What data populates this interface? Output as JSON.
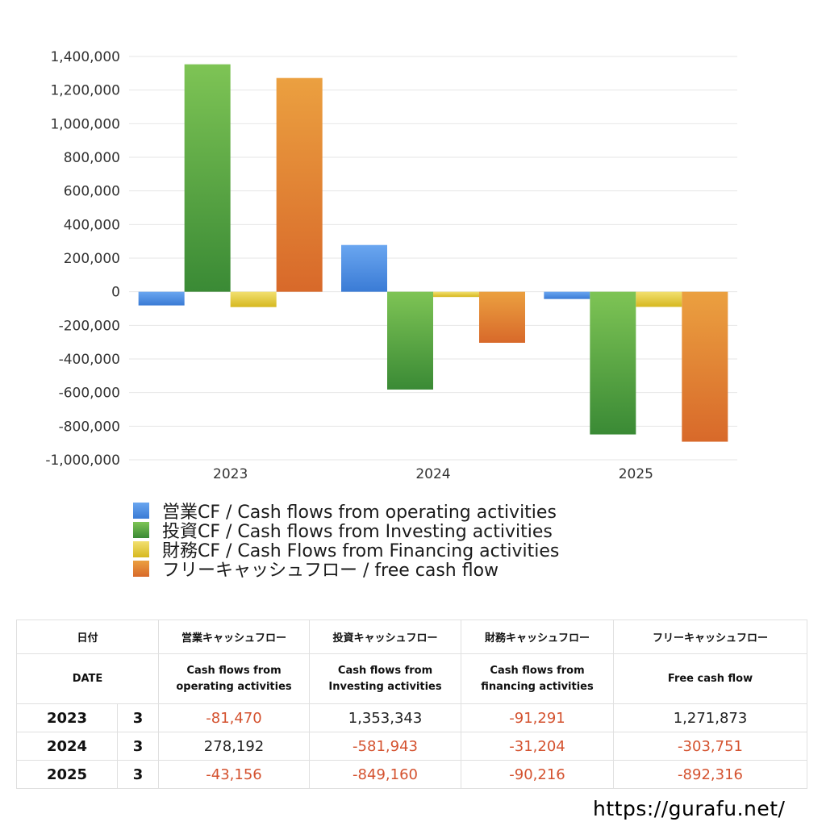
{
  "chart_data": {
    "type": "bar",
    "categories": [
      "2023",
      "2024",
      "2025"
    ],
    "series": [
      {
        "name": "営業CF / Cash flows from operating activities",
        "values": [
          -81470,
          278192,
          -43156
        ],
        "color": "#3a7bd5",
        "color_top": "#6aa6f0"
      },
      {
        "name": "投資CF / Cash flows from Investing activities",
        "values": [
          1353343,
          -581943,
          -849160
        ],
        "color": "#3a8a35",
        "color_top": "#7ec455"
      },
      {
        "name": "財務CF / Cash Flows from Financing activities",
        "values": [
          -91291,
          -31204,
          -90216
        ],
        "color": "#d6b820",
        "color_top": "#f2e070"
      },
      {
        "name": "フリーキャッシュフロー / free cash flow",
        "values": [
          1271873,
          -303751,
          -892316
        ],
        "color": "#d8692a",
        "color_top": "#eba040"
      }
    ],
    "ylim": [
      -1000000,
      1400000
    ],
    "yticks": [
      1400000,
      1200000,
      1000000,
      800000,
      600000,
      400000,
      200000,
      0,
      -200000,
      -400000,
      -600000,
      -800000,
      -1000000
    ],
    "ytick_labels": [
      "1,400,000",
      "1,200,000",
      "1,000,000",
      "800,000",
      "600,000",
      "400,000",
      "200,000",
      "0",
      "-200,000",
      "-400,000",
      "-600,000",
      "-800,000",
      "-1,000,000"
    ],
    "grid": true,
    "legend_position": "bottom-left"
  },
  "table": {
    "header_jp": [
      "日付",
      "営業キャッシュフロー",
      "投資キャッシュフロー",
      "財務キャッシュフロー",
      "フリーキャッシュフロー"
    ],
    "header_en": [
      "DATE",
      "Cash flows from\noperating activities",
      "Cash flows from\nInvesting activities",
      "Cash flows from\nfinancing activities",
      "Free cash flow"
    ],
    "rows": [
      {
        "year": "2023",
        "month": "3",
        "cells": [
          "-81,470",
          "1,353,343",
          "-91,291",
          "1,271,873"
        ]
      },
      {
        "year": "2024",
        "month": "3",
        "cells": [
          "278,192",
          "-581,943",
          "-31,204",
          "-303,751"
        ]
      },
      {
        "year": "2025",
        "month": "3",
        "cells": [
          "-43,156",
          "-849,160",
          "-90,216",
          "-892,316"
        ]
      }
    ]
  },
  "footer": {
    "url": "https://gurafu.net/"
  }
}
